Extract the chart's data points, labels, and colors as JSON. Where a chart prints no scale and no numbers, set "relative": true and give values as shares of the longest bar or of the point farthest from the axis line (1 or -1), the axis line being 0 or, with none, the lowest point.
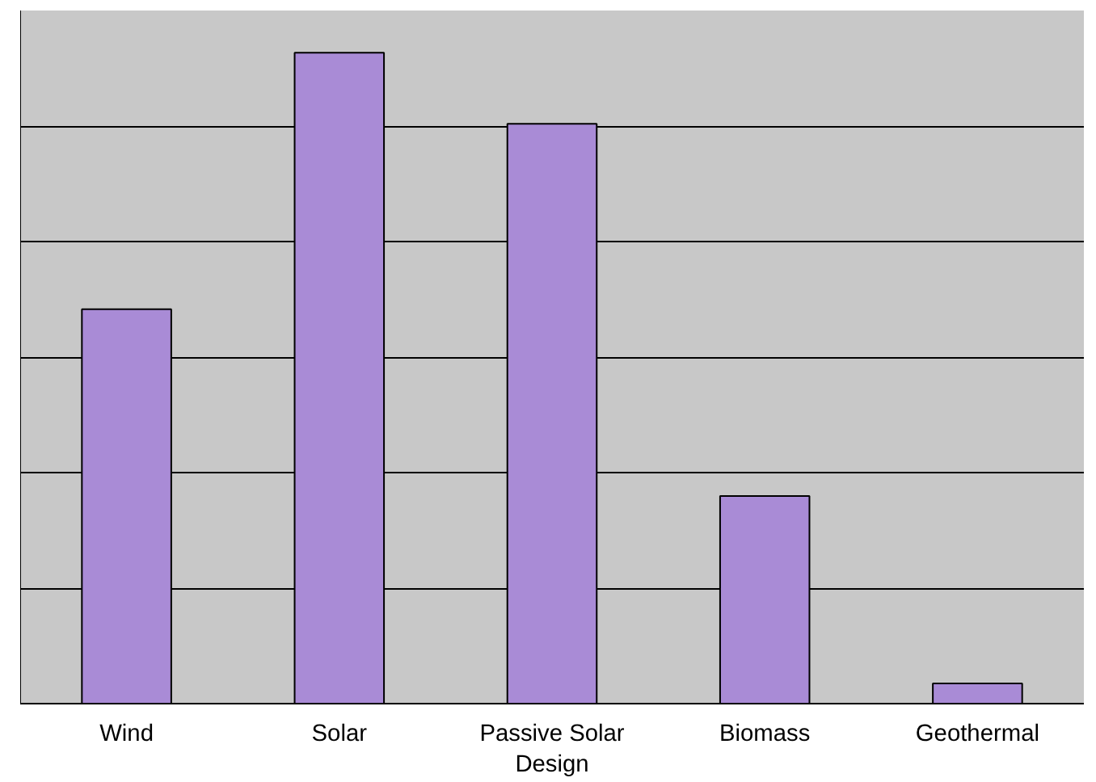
{
  "chart_data": {
    "type": "bar",
    "relative": true,
    "grid": "y",
    "color": "#a98bd6",
    "categories": [
      "Wind",
      "Solar",
      "Passive Solar Design",
      "Biomass",
      "Geothermal"
    ],
    "values": [
      0.606,
      1,
      0.891,
      0.319,
      0.031
    ]
  }
}
